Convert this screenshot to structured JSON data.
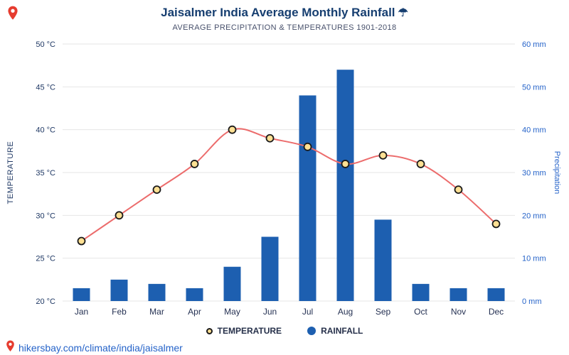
{
  "page": {
    "title": "Jaisalmer India Average Monthly Rainfall",
    "title_icon": "☂",
    "subtitle": "AVERAGE PRECIPITATION & TEMPERATURES 1901-2018",
    "footer_link": "hikersbay.com/climate/india/jaisalmer"
  },
  "legend": {
    "temperature_label": "TEMPERATURE",
    "rainfall_label": "RAINFALL"
  },
  "chart_data": {
    "type": "bar+line",
    "categories": [
      "Jan",
      "Feb",
      "Mar",
      "Apr",
      "May",
      "Jun",
      "Jul",
      "Aug",
      "Sep",
      "Oct",
      "Nov",
      "Dec"
    ],
    "series": [
      {
        "name": "RAINFALL",
        "type": "bar",
        "axis": "right",
        "unit": "mm",
        "values": [
          3,
          5,
          4,
          3,
          8,
          15,
          48,
          54,
          19,
          4,
          3,
          3
        ]
      },
      {
        "name": "TEMPERATURE",
        "type": "line",
        "axis": "left",
        "unit": "°C",
        "values": [
          27,
          30,
          33,
          36,
          40,
          39,
          38,
          36,
          37,
          36,
          33,
          29
        ]
      }
    ],
    "left_axis": {
      "label": "TEMPERATURE",
      "min": 20,
      "max": 50,
      "step": 5,
      "tick_suffix": " °C"
    },
    "right_axis": {
      "label": "Precipitation",
      "min": 0,
      "max": 60,
      "step": 10,
      "tick_suffix": " mm"
    },
    "grid": true,
    "legend_position": "bottom",
    "colors": {
      "bar": "#1d5fb0",
      "line": "#ec6c6c",
      "marker_fill": "#ffe093",
      "marker_stroke": "#1a1a1a",
      "grid": "#e6e6e6",
      "title": "#163e70",
      "subtitle": "#47506b",
      "left_tick": "#1f3864",
      "month_label": "#243052",
      "right_tick": "#2563c9",
      "link": "#2563c9",
      "pin": "#e63c2f"
    }
  }
}
